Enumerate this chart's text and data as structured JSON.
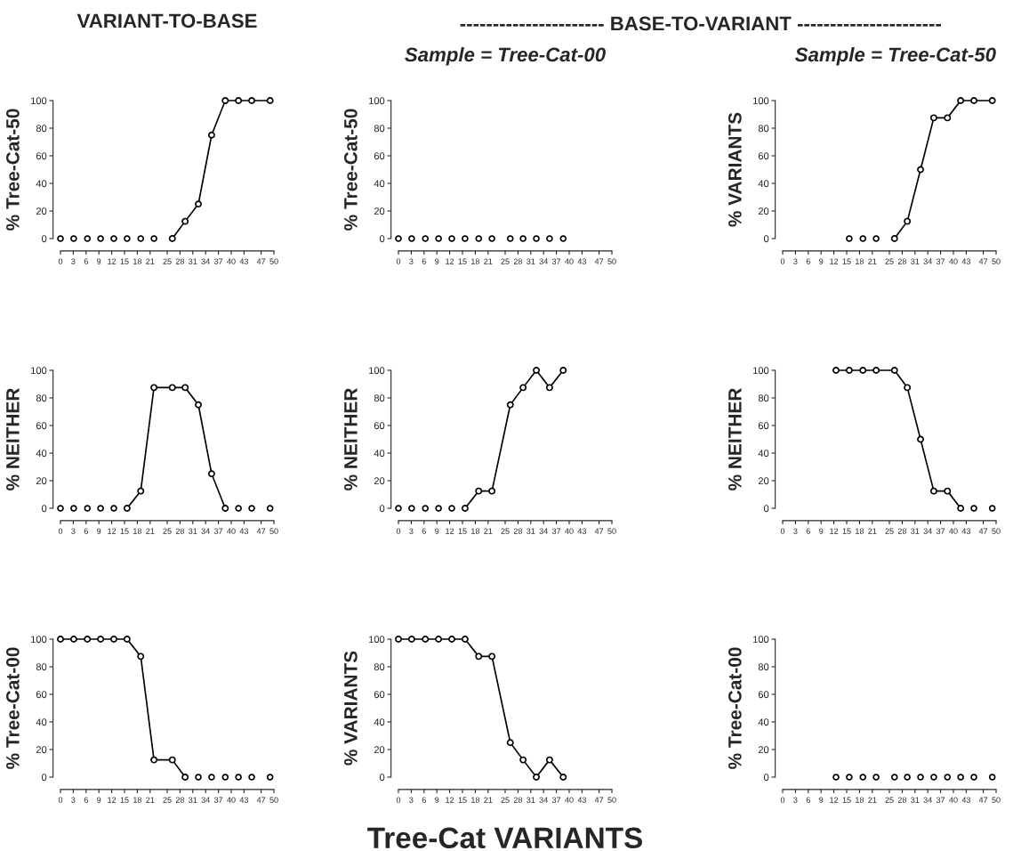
{
  "chart_data": [
    {
      "type": "line",
      "title": "VARIANT-TO-BASE",
      "ylabel": "% Tree-Cat-50",
      "xlim": [
        0,
        50
      ],
      "ylim": [
        0,
        100
      ],
      "yticks": [
        0,
        20,
        40,
        60,
        80,
        100
      ],
      "xticks": [
        0,
        3,
        6,
        9,
        12,
        15,
        18,
        21,
        25,
        28,
        31,
        34,
        37,
        40,
        43,
        47,
        50
      ],
      "marker": "circle",
      "series": [
        {
          "type": "scatter",
          "color": "#000000",
          "x": [
            0,
            3.1,
            6.3,
            9.4,
            12.5,
            15.6,
            18.8,
            21.9
          ],
          "values": [
            0,
            0,
            0,
            0,
            0,
            0,
            0,
            0
          ]
        },
        {
          "type": "line",
          "color": "#000000",
          "x": [
            26.2,
            29.2,
            32.3,
            35.4,
            38.6,
            41.7,
            44.8,
            49.1
          ],
          "values": [
            0,
            12.5,
            25,
            75,
            100,
            100,
            100,
            100
          ]
        }
      ]
    },
    {
      "type": "line",
      "title": "Sample = Tree-Cat-00",
      "annotations": [
        "---------------------- BASE-TO-VARIANT ----------------------"
      ],
      "ylabel": "% Tree-Cat-50",
      "xlim": [
        0,
        50
      ],
      "ylim": [
        0,
        100
      ],
      "yticks": [
        0,
        20,
        40,
        60,
        80,
        100
      ],
      "xticks": [
        0,
        3,
        6,
        9,
        12,
        15,
        18,
        21,
        25,
        28,
        31,
        34,
        37,
        40,
        43,
        47,
        50
      ],
      "marker": "circle",
      "series": [
        {
          "type": "scatter",
          "color": "#000000",
          "x": [
            0,
            3.1,
            6.3,
            9.4,
            12.5,
            15.6,
            18.8,
            21.9,
            26.2,
            29.2,
            32.3,
            35.4,
            38.6
          ],
          "values": [
            0,
            0,
            0,
            0,
            0,
            0,
            0,
            0,
            0,
            0,
            0,
            0,
            0
          ]
        }
      ]
    },
    {
      "type": "line",
      "title": "Sample = Tree-Cat-50",
      "ylabel": "% VARIANTS",
      "xlim": [
        0,
        50
      ],
      "ylim": [
        0,
        100
      ],
      "yticks": [
        0,
        20,
        40,
        60,
        80,
        100
      ],
      "xticks": [
        0,
        3,
        6,
        9,
        12,
        15,
        18,
        21,
        25,
        28,
        31,
        34,
        37,
        40,
        43,
        47,
        50
      ],
      "marker": "circle",
      "series": [
        {
          "type": "scatter",
          "color": "#000000",
          "x": [
            15.6,
            18.8,
            21.9
          ],
          "values": [
            0,
            0,
            0
          ]
        },
        {
          "type": "line",
          "color": "#000000",
          "x": [
            26.2,
            29.2,
            32.3,
            35.4,
            38.6,
            41.7,
            44.8,
            49.1
          ],
          "values": [
            0,
            12.5,
            50,
            87.5,
            87.5,
            100,
            100,
            100
          ]
        }
      ]
    },
    {
      "type": "line",
      "ylabel": "% NEITHER",
      "xlim": [
        0,
        50
      ],
      "ylim": [
        0,
        100
      ],
      "yticks": [
        0,
        20,
        40,
        60,
        80,
        100
      ],
      "xticks": [
        0,
        3,
        6,
        9,
        12,
        15,
        18,
        21,
        25,
        28,
        31,
        34,
        37,
        40,
        43,
        47,
        50
      ],
      "marker": "circle",
      "series": [
        {
          "type": "scatter",
          "color": "#000000",
          "x": [
            0,
            3.1,
            6.3,
            9.4,
            12.5,
            41.7,
            44.8,
            49.1
          ],
          "values": [
            0,
            0,
            0,
            0,
            0,
            0,
            0,
            0
          ]
        },
        {
          "type": "line",
          "color": "#000000",
          "x": [
            15.6,
            18.8,
            21.9,
            26.2,
            29.2,
            32.3,
            35.4,
            38.6
          ],
          "values": [
            0,
            12.5,
            87.5,
            87.5,
            87.5,
            75,
            25,
            0
          ]
        }
      ]
    },
    {
      "type": "line",
      "ylabel": "% NEITHER",
      "xlim": [
        0,
        50
      ],
      "ylim": [
        0,
        100
      ],
      "yticks": [
        0,
        20,
        40,
        60,
        80,
        100
      ],
      "xticks": [
        0,
        3,
        6,
        9,
        12,
        15,
        18,
        21,
        25,
        28,
        31,
        34,
        37,
        40,
        43,
        47,
        50
      ],
      "marker": "circle",
      "series": [
        {
          "type": "scatter",
          "color": "#000000",
          "x": [
            0,
            3.1,
            6.3,
            9.4,
            12.5
          ],
          "values": [
            0,
            0,
            0,
            0,
            0
          ]
        },
        {
          "type": "line",
          "color": "#000000",
          "x": [
            15.6,
            18.8,
            21.9,
            26.2,
            29.2,
            32.3,
            35.4,
            38.6
          ],
          "values": [
            0,
            12.5,
            12.5,
            75,
            87.5,
            100,
            87.5,
            100
          ]
        }
      ]
    },
    {
      "type": "line",
      "ylabel": "% NEITHER",
      "xlim": [
        0,
        50
      ],
      "ylim": [
        0,
        100
      ],
      "yticks": [
        0,
        20,
        40,
        60,
        80,
        100
      ],
      "xticks": [
        0,
        3,
        6,
        9,
        12,
        15,
        18,
        21,
        25,
        28,
        31,
        34,
        37,
        40,
        43,
        47,
        50
      ],
      "marker": "circle",
      "series": [
        {
          "type": "scatter",
          "color": "#000000",
          "x": [
            44.8,
            49.1
          ],
          "values": [
            0,
            0
          ]
        },
        {
          "type": "line",
          "color": "#000000",
          "x": [
            12.5,
            15.6,
            18.8,
            21.9,
            26.2,
            29.2,
            32.3,
            35.4,
            38.6,
            41.7
          ],
          "values": [
            100,
            100,
            100,
            100,
            100,
            87.5,
            50,
            12.5,
            12.5,
            0
          ]
        }
      ]
    },
    {
      "type": "line",
      "ylabel": "% Tree-Cat-00",
      "xlim": [
        0,
        50
      ],
      "ylim": [
        0,
        100
      ],
      "yticks": [
        0,
        20,
        40,
        60,
        80,
        100
      ],
      "xticks": [
        0,
        3,
        6,
        9,
        12,
        15,
        18,
        21,
        25,
        28,
        31,
        34,
        37,
        40,
        43,
        47,
        50
      ],
      "marker": "circle",
      "series": [
        {
          "type": "scatter",
          "color": "#000000",
          "x": [
            32.3,
            35.4,
            38.6,
            41.7,
            44.8,
            49.1
          ],
          "values": [
            0,
            0,
            0,
            0,
            0,
            0
          ]
        },
        {
          "type": "line",
          "color": "#000000",
          "x": [
            0,
            3.1,
            6.3,
            9.4,
            12.5,
            15.6,
            18.8,
            21.9,
            26.2,
            29.2
          ],
          "values": [
            100,
            100,
            100,
            100,
            100,
            100,
            87.5,
            12.5,
            12.5,
            0
          ]
        }
      ]
    },
    {
      "type": "line",
      "ylabel": "% VARIANTS",
      "xlabel": "Tree-Cat VARIANTS",
      "xlim": [
        0,
        50
      ],
      "ylim": [
        0,
        100
      ],
      "yticks": [
        0,
        20,
        40,
        60,
        80,
        100
      ],
      "xticks": [
        0,
        3,
        6,
        9,
        12,
        15,
        18,
        21,
        25,
        28,
        31,
        34,
        37,
        40,
        43,
        47,
        50
      ],
      "marker": "circle",
      "series": [
        {
          "type": "line",
          "color": "#000000",
          "x": [
            0,
            3.1,
            6.3,
            9.4,
            12.5,
            15.6,
            18.8,
            21.9,
            26.2,
            29.2,
            32.3,
            35.4,
            38.6
          ],
          "values": [
            100,
            100,
            100,
            100,
            100,
            100,
            87.5,
            87.5,
            25,
            12.5,
            0,
            12.5,
            0
          ]
        }
      ]
    },
    {
      "type": "line",
      "ylabel": "% Tree-Cat-00",
      "xlim": [
        0,
        50
      ],
      "ylim": [
        0,
        100
      ],
      "yticks": [
        0,
        20,
        40,
        60,
        80,
        100
      ],
      "xticks": [
        0,
        3,
        6,
        9,
        12,
        15,
        18,
        21,
        25,
        28,
        31,
        34,
        37,
        40,
        43,
        47,
        50
      ],
      "marker": "circle",
      "series": [
        {
          "type": "scatter",
          "color": "#000000",
          "x": [
            12.5,
            15.6,
            18.8,
            21.9,
            26.2,
            29.2,
            32.3,
            35.4,
            38.6,
            41.7,
            44.8,
            49.1
          ],
          "values": [
            0,
            0,
            0,
            0,
            0,
            0,
            0,
            0,
            0,
            0,
            0,
            0
          ]
        }
      ]
    }
  ]
}
